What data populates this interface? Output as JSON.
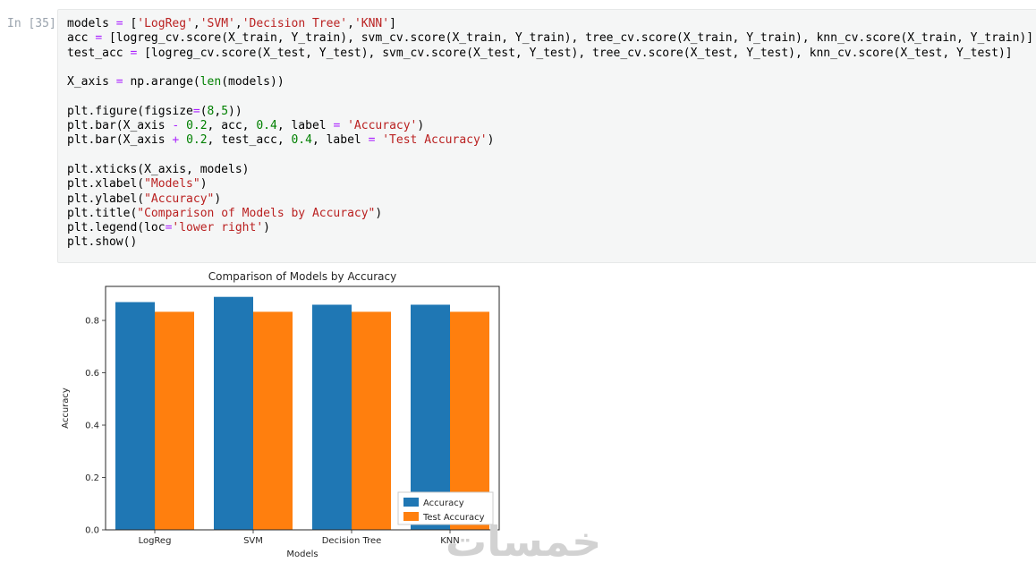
{
  "notebook": {
    "prompt": "In [35]:",
    "code_lines": [
      [
        [
          "",
          "models "
        ],
        [
          "k",
          "="
        ],
        [
          "",
          " ["
        ],
        [
          "s",
          "'LogReg'"
        ],
        [
          "",
          ","
        ],
        [
          "s",
          "'SVM'"
        ],
        [
          "",
          ","
        ],
        [
          "s",
          "'Decision Tree'"
        ],
        [
          "",
          ","
        ],
        [
          "s",
          "'KNN'"
        ],
        [
          "",
          "]"
        ]
      ],
      [
        [
          "",
          "acc "
        ],
        [
          "k",
          "="
        ],
        [
          "",
          " [logreg_cv.score(X_train, Y_train), svm_cv.score(X_train, Y_train), tree_cv.score(X_train, Y_train), knn_cv.score(X_train, Y_train)]"
        ]
      ],
      [
        [
          "",
          "test_acc "
        ],
        [
          "k",
          "="
        ],
        [
          "",
          " [logreg_cv.score(X_test, Y_test), svm_cv.score(X_test, Y_test), tree_cv.score(X_test, Y_test), knn_cv.score(X_test, Y_test)]"
        ]
      ],
      [],
      [
        [
          "",
          "X_axis "
        ],
        [
          "k",
          "="
        ],
        [
          "",
          " np.arange("
        ],
        [
          "b",
          "len"
        ],
        [
          "",
          "(models))"
        ]
      ],
      [],
      [
        [
          "",
          "plt.figure(figsize"
        ],
        [
          "k",
          "="
        ],
        [
          "",
          "("
        ],
        [
          "n",
          "8"
        ],
        [
          "",
          ","
        ],
        [
          "n",
          "5"
        ],
        [
          "",
          "))"
        ]
      ],
      [
        [
          "",
          "plt.bar(X_axis "
        ],
        [
          "k",
          "-"
        ],
        [
          "",
          " "
        ],
        [
          "n",
          "0.2"
        ],
        [
          "",
          ", acc, "
        ],
        [
          "n",
          "0.4"
        ],
        [
          "",
          ", label "
        ],
        [
          "k",
          "="
        ],
        [
          "",
          " "
        ],
        [
          "s",
          "'Accuracy'"
        ],
        [
          "",
          ")"
        ]
      ],
      [
        [
          "",
          "plt.bar(X_axis "
        ],
        [
          "k",
          "+"
        ],
        [
          "",
          " "
        ],
        [
          "n",
          "0.2"
        ],
        [
          "",
          ", test_acc, "
        ],
        [
          "n",
          "0.4"
        ],
        [
          "",
          ", label "
        ],
        [
          "k",
          "="
        ],
        [
          "",
          " "
        ],
        [
          "s",
          "'Test Accuracy'"
        ],
        [
          "",
          ")"
        ]
      ],
      [],
      [
        [
          "",
          "plt.xticks(X_axis, models)"
        ]
      ],
      [
        [
          "",
          "plt.xlabel("
        ],
        [
          "s",
          "\"Models\""
        ],
        [
          "",
          ")"
        ]
      ],
      [
        [
          "",
          "plt.ylabel("
        ],
        [
          "s",
          "\"Accuracy\""
        ],
        [
          "",
          ")"
        ]
      ],
      [
        [
          "",
          "plt.title("
        ],
        [
          "s",
          "\"Comparison of Models by Accuracy\""
        ],
        [
          "",
          ")"
        ]
      ],
      [
        [
          "",
          "plt.legend(loc"
        ],
        [
          "k",
          "="
        ],
        [
          "s",
          "'lower right'"
        ],
        [
          "",
          ")"
        ]
      ],
      [
        [
          "",
          "plt.show()"
        ]
      ]
    ]
  },
  "chart_data": {
    "type": "bar",
    "title": "Comparison of Models by Accuracy",
    "xlabel": "Models",
    "ylabel": "Accuracy",
    "categories": [
      "LogReg",
      "SVM",
      "Decision Tree",
      "KNN"
    ],
    "series": [
      {
        "name": "Accuracy",
        "color": "#1f77b4",
        "values": [
          0.87,
          0.89,
          0.86,
          0.86
        ]
      },
      {
        "name": "Test Accuracy",
        "color": "#ff7f0e",
        "values": [
          0.833,
          0.833,
          0.833,
          0.833
        ]
      }
    ],
    "ylim": [
      0,
      0.93
    ],
    "yticks": [
      0.0,
      0.2,
      0.4,
      0.6,
      0.8
    ],
    "bar_width": 0.4,
    "legend_position": "lower right",
    "grid": false,
    "frame_color": "#262626"
  },
  "watermark": {
    "text": "خمسات"
  }
}
